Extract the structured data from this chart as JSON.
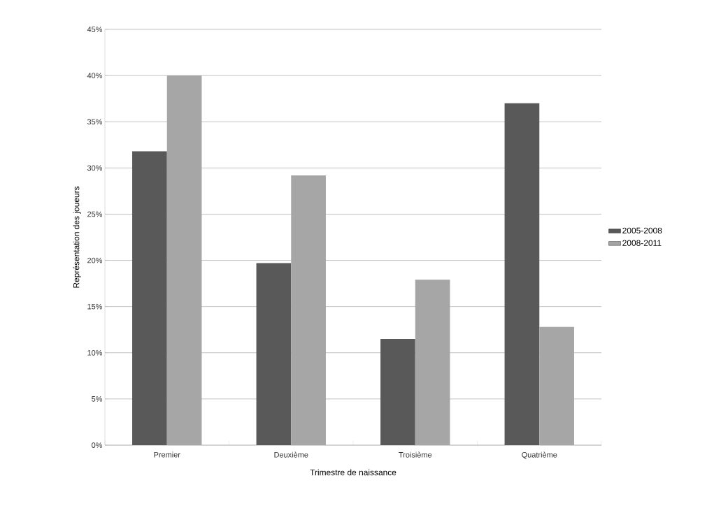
{
  "chart_data": {
    "type": "bar",
    "xlabel": "Trimestre de naissance",
    "ylabel": "Représentation des joueurs",
    "categories": [
      "Premier",
      "Deuxième",
      "Troisième",
      "Quatrième"
    ],
    "series": [
      {
        "name": "2005-2008",
        "color": "#595959",
        "values": [
          31.8,
          19.7,
          11.5,
          37.0
        ]
      },
      {
        "name": "2008-2011",
        "color": "#a6a6a6",
        "values": [
          40.0,
          29.2,
          17.9,
          12.8
        ]
      }
    ],
    "ylim": [
      0,
      45
    ],
    "yticks": [
      {
        "value": 0,
        "label": "0%"
      },
      {
        "value": 5,
        "label": "5%"
      },
      {
        "value": 10,
        "label": "10%"
      },
      {
        "value": 15,
        "label": "15%"
      },
      {
        "value": 20,
        "label": "20%"
      },
      {
        "value": 25,
        "label": "25%"
      },
      {
        "value": 30,
        "label": "30%"
      },
      {
        "value": 35,
        "label": "35%"
      },
      {
        "value": 40,
        "label": "40%"
      },
      {
        "value": 45,
        "label": "45%"
      }
    ],
    "grid": "y",
    "legend": "right"
  }
}
